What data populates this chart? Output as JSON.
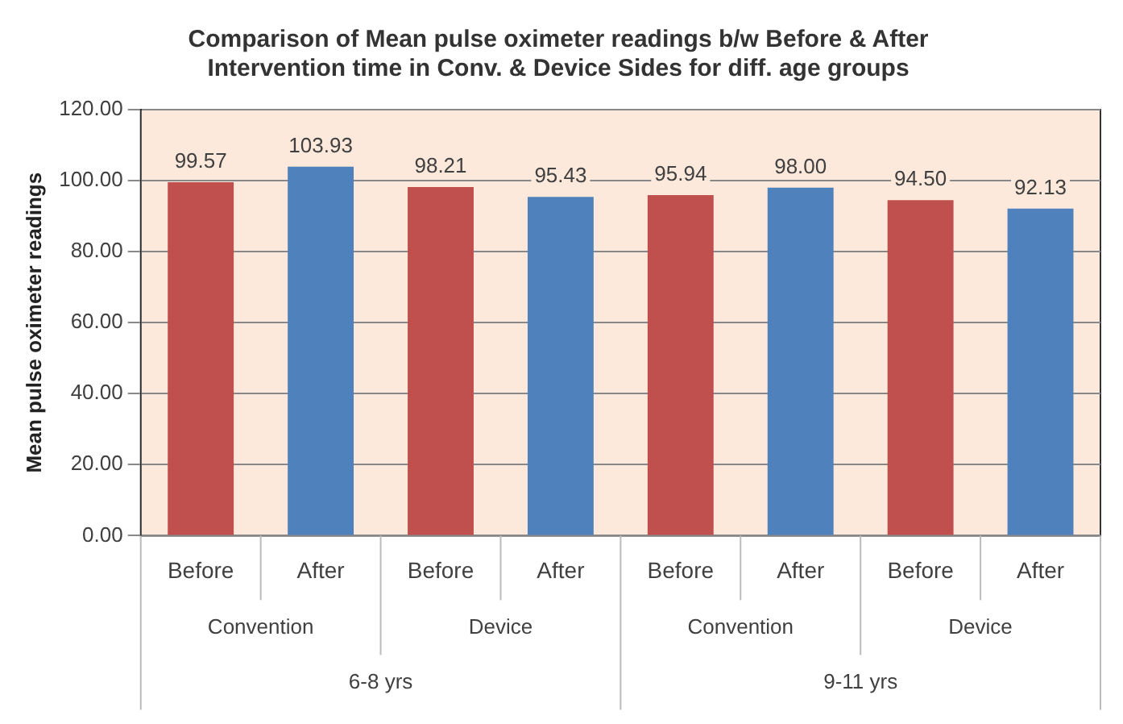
{
  "chart_data": {
    "type": "bar",
    "title": "Comparison of Mean pulse oximeter readings b/w Before & After Intervention time in Conv. & Device Sides for diff. age groups",
    "ylabel": "Mean pulse oximeter readings",
    "categories": [
      "Before",
      "After",
      "Before",
      "After",
      "Before",
      "After",
      "Before",
      "After"
    ],
    "values": [
      99.57,
      103.93,
      98.21,
      95.43,
      95.94,
      98.0,
      94.5,
      92.13
    ],
    "colors": [
      "#c0504d",
      "#4f81bd",
      "#c0504d",
      "#4f81bd",
      "#c0504d",
      "#4f81bd",
      "#c0504d",
      "#4f81bd"
    ],
    "value_labels": [
      "99.57",
      "103.93",
      "98.21",
      "95.43",
      "95.94",
      "98.00",
      "94.50",
      "92.13"
    ],
    "annotations": [
      "Convention",
      "Device",
      "Convention",
      "Device",
      "6-8 yrs",
      "9-11 yrs"
    ],
    "ylim": [
      0,
      120
    ],
    "yticks": [
      {
        "value": 0,
        "label": "0.00"
      },
      {
        "value": 20,
        "label": "20.00"
      },
      {
        "value": 40,
        "label": "40.00"
      },
      {
        "value": 60,
        "label": "60.00"
      },
      {
        "value": 80,
        "label": "80.00"
      },
      {
        "value": 100,
        "label": "100.00"
      },
      {
        "value": 120,
        "label": "120.00"
      }
    ],
    "grid": "y",
    "legend": false
  }
}
